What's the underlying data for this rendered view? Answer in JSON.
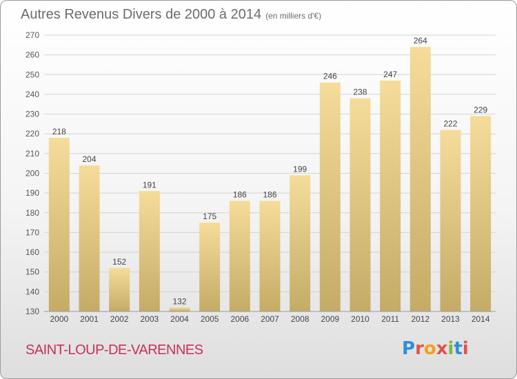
{
  "title": {
    "main": "Autres Revenus Divers de 2000 à 2014",
    "unit": "(en milliers d'€)"
  },
  "location": "SAINT-LOUP-DE-VARENNES",
  "brand": {
    "text": "Proxiti",
    "letter_colors": [
      "#2e8fd6",
      "#e0534a",
      "#f2a21b",
      "#e0534a",
      "#7cb83a",
      "#2e8fd6",
      "#e0534a"
    ]
  },
  "chart_data": {
    "type": "bar",
    "categories": [
      "2000",
      "2001",
      "2002",
      "2003",
      "2004",
      "2005",
      "2006",
      "2007",
      "2008",
      "2009",
      "2010",
      "2011",
      "2012",
      "2013",
      "2014"
    ],
    "values": [
      218,
      204,
      152,
      191,
      132,
      175,
      186,
      186,
      199,
      246,
      238,
      247,
      264,
      222,
      229
    ],
    "ylim": [
      130,
      270
    ],
    "yticks": [
      130,
      140,
      150,
      160,
      170,
      180,
      190,
      200,
      210,
      220,
      230,
      240,
      250,
      260,
      270
    ],
    "grid": true,
    "bar_color_light": "#f5dc9a",
    "bar_color_dark": "#c4ab66"
  }
}
